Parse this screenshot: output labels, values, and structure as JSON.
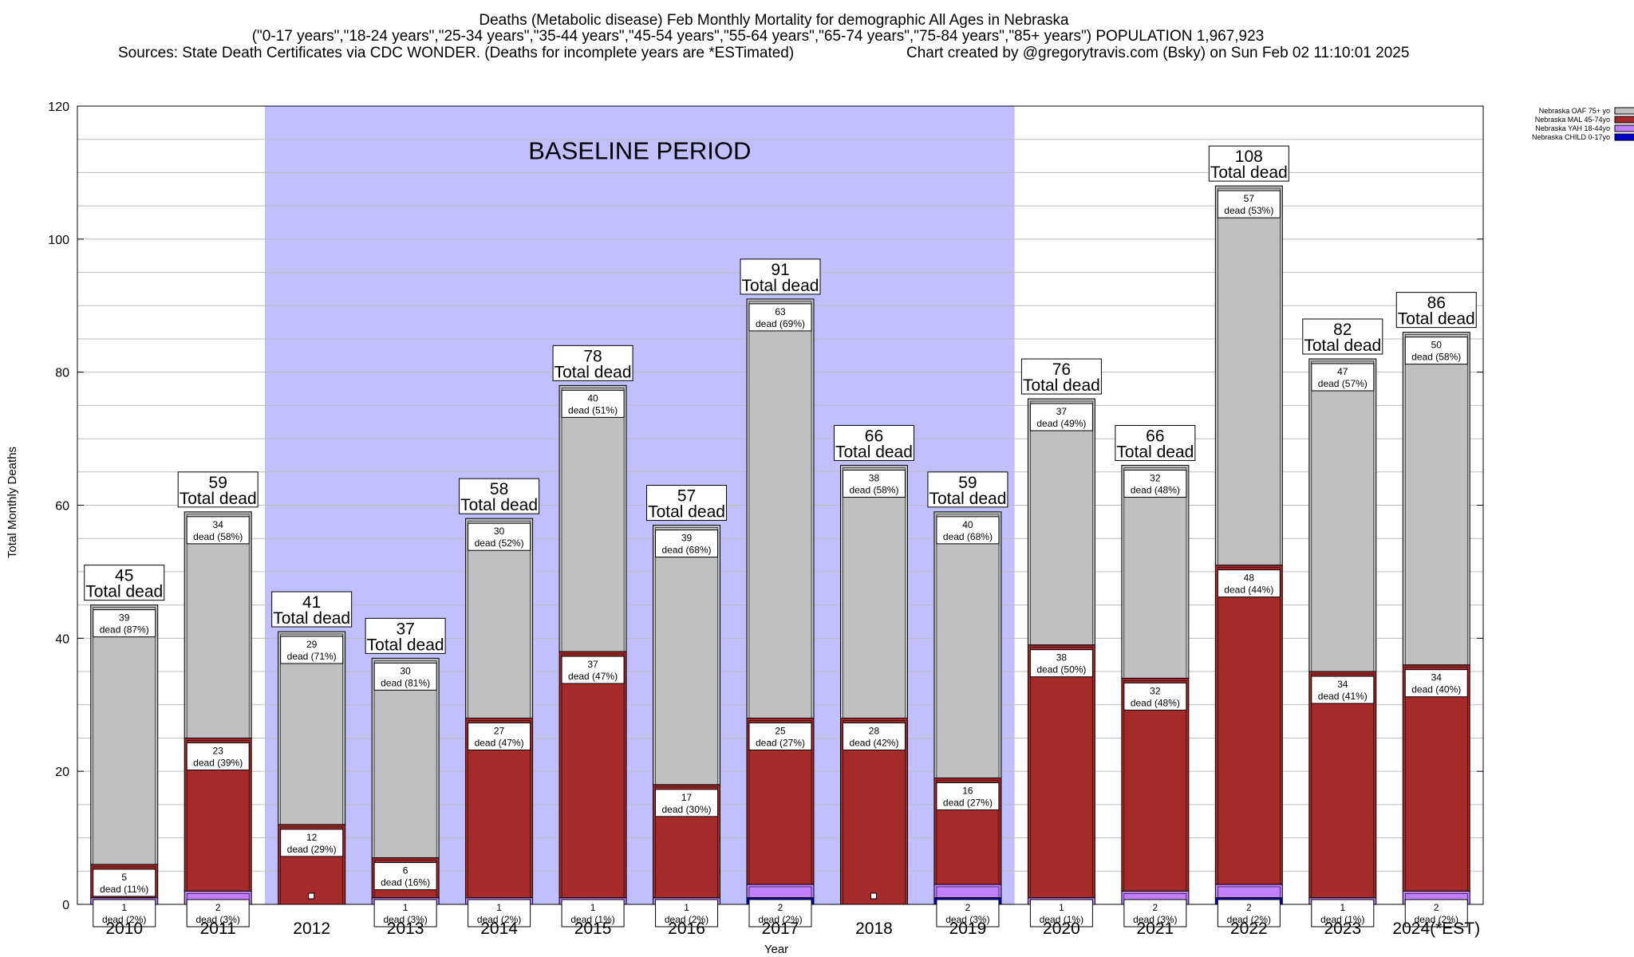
{
  "chart_data": {
    "type": "bar",
    "title": "Deaths (Metabolic disease) Feb Monthly Mortality for demographic All Ages in Nebraska",
    "subtitle": "(\"0-17 years\",\"18-24 years\",\"25-34 years\",\"35-44 years\",\"45-54 years\",\"55-64 years\",\"65-74 years\",\"75-84 years\",\"85+ years\") POPULATION 1,967,923",
    "source": "Sources: State Death Certificates via CDC WONDER. (Deaths for incomplete years are *ESTimated)",
    "credit": "Chart created by @gregorytravis.com (Bsky) on Sun Feb 02 11:10:01 2025",
    "xlabel": "Year",
    "ylabel": "Total Monthly Deaths",
    "ylim": [
      0,
      120
    ],
    "yticks": [
      0,
      20,
      40,
      60,
      80,
      100,
      120
    ],
    "grid": true,
    "legend_position": "top-right",
    "baseline_label": "BASELINE PERIOD",
    "baseline_range": [
      "2012",
      "2019"
    ],
    "total_suffix": "Total dead",
    "dead_word": "dead",
    "categories": [
      "2010",
      "2011",
      "2012",
      "2013",
      "2014",
      "2015",
      "2016",
      "2017",
      "2018",
      "2019",
      "2020",
      "2021",
      "2022",
      "2023",
      "2024(*EST)"
    ],
    "totals": [
      45,
      59,
      41,
      37,
      58,
      78,
      57,
      91,
      66,
      59,
      76,
      66,
      108,
      82,
      86
    ],
    "series": [
      {
        "name": "Nebraska CHILD 0-17yo",
        "color": "#0000cc",
        "values": [
          0,
          0,
          0,
          0,
          0,
          0,
          0,
          1,
          0,
          1,
          0,
          0,
          1,
          0,
          0
        ],
        "labels": [
          null,
          null,
          null,
          null,
          null,
          null,
          null,
          null,
          null,
          null,
          null,
          null,
          null,
          null,
          null
        ]
      },
      {
        "name": "Nebraska YAH 18-44yo",
        "color": "#c080ff",
        "values": [
          1,
          2,
          0,
          1,
          1,
          1,
          1,
          2,
          0,
          2,
          1,
          2,
          2,
          1,
          2
        ],
        "labels": [
          [
            "1",
            "(2%)"
          ],
          [
            "2",
            "(3%)"
          ],
          null,
          [
            "1",
            "(3%)"
          ],
          [
            "1",
            "(2%)"
          ],
          [
            "1",
            "(1%)"
          ],
          [
            "1",
            "(2%)"
          ],
          [
            "2",
            "(2%)"
          ],
          null,
          [
            "2",
            "(3%)"
          ],
          [
            "1",
            "(1%)"
          ],
          [
            "2",
            "(3%)"
          ],
          [
            "2",
            "(2%)"
          ],
          [
            "1",
            "(1%)"
          ],
          [
            "2",
            "(2%)"
          ]
        ]
      },
      {
        "name": "Nebraska MAL 45-74yo",
        "color": "#a52a2a",
        "values": [
          5,
          23,
          12,
          6,
          27,
          37,
          17,
          25,
          28,
          16,
          38,
          32,
          48,
          34,
          34
        ],
        "labels": [
          [
            "5",
            "(11%)"
          ],
          [
            "23",
            "(39%)"
          ],
          [
            "12",
            "(29%)"
          ],
          [
            "6",
            "(16%)"
          ],
          [
            "27",
            "(47%)"
          ],
          [
            "37",
            "(47%)"
          ],
          [
            "17",
            "(30%)"
          ],
          [
            "25",
            "(27%)"
          ],
          [
            "28",
            "(42%)"
          ],
          [
            "16",
            "(27%)"
          ],
          [
            "38",
            "(50%)"
          ],
          [
            "32",
            "(48%)"
          ],
          [
            "48",
            "(44%)"
          ],
          [
            "34",
            "(41%)"
          ],
          [
            "34",
            "(40%)"
          ]
        ]
      },
      {
        "name": "Nebraska OAF 75+ yo",
        "color": "#c0c0c0",
        "values": [
          39,
          34,
          29,
          30,
          30,
          40,
          39,
          63,
          38,
          40,
          37,
          32,
          57,
          47,
          50
        ],
        "labels": [
          [
            "39",
            "(87%)"
          ],
          [
            "34",
            "(58%)"
          ],
          [
            "29",
            "(71%)"
          ],
          [
            "30",
            "(81%)"
          ],
          [
            "30",
            "(52%)"
          ],
          [
            "40",
            "(51%)"
          ],
          [
            "39",
            "(68%)"
          ],
          [
            "63",
            "(69%)"
          ],
          [
            "38",
            "(58%)"
          ],
          [
            "40",
            "(68%)"
          ],
          [
            "37",
            "(49%)"
          ],
          [
            "32",
            "(48%)"
          ],
          [
            "57",
            "(53%)"
          ],
          [
            "47",
            "(57%)"
          ],
          [
            "50",
            "(58%)"
          ]
        ]
      }
    ],
    "legend_order": [
      3,
      2,
      1,
      0
    ],
    "colors": {
      "baseline": "#c0c0ff",
      "bar_outline": "#000000",
      "gridline": "#bdbdbd"
    }
  }
}
